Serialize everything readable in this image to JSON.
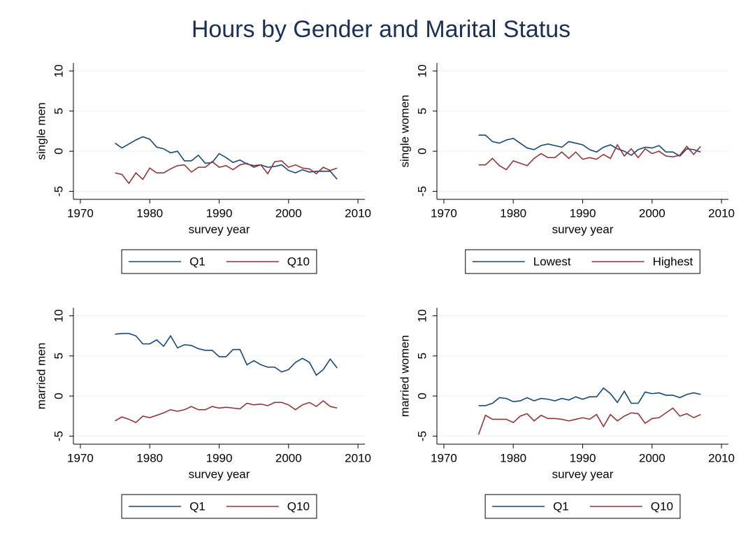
{
  "title": "Hours by Gender and Marital Status",
  "chart_data": [
    {
      "type": "line",
      "ylabel": "single men",
      "xlabel": "survey year",
      "x": [
        1975,
        1976,
        1977,
        1978,
        1979,
        1980,
        1981,
        1982,
        1983,
        1984,
        1985,
        1986,
        1987,
        1988,
        1989,
        1990,
        1991,
        1992,
        1993,
        1994,
        1995,
        1996,
        1997,
        1998,
        1999,
        2000,
        2001,
        2002,
        2003,
        2004,
        2005,
        2006,
        2007
      ],
      "xlim": [
        1969,
        2011
      ],
      "xticks": [
        1970,
        1980,
        1990,
        2000,
        2010
      ],
      "ylim": [
        -6,
        11
      ],
      "yticks": [
        -5,
        0,
        5,
        10
      ],
      "grid": true,
      "series": [
        {
          "name": "Q1",
          "color": "#1a476f",
          "values": [
            1.0,
            0.4,
            0.9,
            1.4,
            1.8,
            1.5,
            0.5,
            0.3,
            -0.2,
            0.0,
            -1.2,
            -1.2,
            -0.5,
            -1.5,
            -1.4,
            -0.3,
            -0.8,
            -1.4,
            -1.1,
            -1.6,
            -1.8,
            -1.7,
            -2.0,
            -1.9,
            -1.7,
            -2.4,
            -2.7,
            -2.3,
            -2.6,
            -2.5,
            -2.5,
            -2.5,
            -3.5
          ]
        },
        {
          "name": "Q10",
          "color": "#90353b",
          "values": [
            -2.7,
            -2.9,
            -4.0,
            -2.7,
            -3.5,
            -2.1,
            -2.7,
            -2.7,
            -2.2,
            -1.8,
            -1.7,
            -2.6,
            -2.0,
            -2.0,
            -1.3,
            -2.0,
            -1.8,
            -2.3,
            -1.7,
            -1.5,
            -2.0,
            -1.7,
            -2.8,
            -1.3,
            -1.2,
            -2.0,
            -1.7,
            -2.1,
            -2.2,
            -2.8,
            -2.0,
            -2.4,
            -2.1
          ]
        }
      ]
    },
    {
      "type": "line",
      "ylabel": "single women",
      "xlabel": "survey year",
      "x": [
        1975,
        1976,
        1977,
        1978,
        1979,
        1980,
        1981,
        1982,
        1983,
        1984,
        1985,
        1986,
        1987,
        1988,
        1989,
        1990,
        1991,
        1992,
        1993,
        1994,
        1995,
        1996,
        1997,
        1998,
        1999,
        2000,
        2001,
        2002,
        2003,
        2004,
        2005,
        2006,
        2007
      ],
      "xlim": [
        1969,
        2011
      ],
      "xticks": [
        1970,
        1980,
        1990,
        2000,
        2010
      ],
      "ylim": [
        -6,
        11
      ],
      "yticks": [
        -5,
        0,
        5,
        10
      ],
      "grid": true,
      "series": [
        {
          "name": "Lowest",
          "color": "#1a476f",
          "values": [
            2.0,
            2.0,
            1.2,
            1.0,
            1.4,
            1.6,
            1.0,
            0.4,
            0.2,
            0.7,
            0.9,
            0.7,
            0.5,
            1.2,
            1.0,
            0.8,
            0.2,
            -0.1,
            0.5,
            0.8,
            0.3,
            0.0,
            -0.5,
            0.2,
            0.5,
            0.4,
            0.7,
            -0.1,
            -0.1,
            -0.6,
            0.3,
            0.2,
            -0.1
          ]
        },
        {
          "name": "Highest",
          "color": "#90353b",
          "values": [
            -1.7,
            -1.7,
            -0.9,
            -1.8,
            -2.3,
            -1.2,
            -1.5,
            -1.8,
            -0.9,
            -0.3,
            -0.8,
            -0.8,
            -0.1,
            -0.9,
            -0.1,
            -1.0,
            -0.8,
            -1.0,
            -0.4,
            -0.9,
            0.8,
            -0.6,
            0.3,
            -0.8,
            0.3,
            -0.3,
            0.0,
            -0.6,
            -0.7,
            -0.5,
            0.6,
            -0.4,
            0.6
          ]
        }
      ]
    },
    {
      "type": "line",
      "ylabel": "married men",
      "xlabel": "survey year",
      "x": [
        1975,
        1976,
        1977,
        1978,
        1979,
        1980,
        1981,
        1982,
        1983,
        1984,
        1985,
        1986,
        1987,
        1988,
        1989,
        1990,
        1991,
        1992,
        1993,
        1994,
        1995,
        1996,
        1997,
        1998,
        1999,
        2000,
        2001,
        2002,
        2003,
        2004,
        2005,
        2006,
        2007
      ],
      "xlim": [
        1969,
        2011
      ],
      "xticks": [
        1970,
        1980,
        1990,
        2000,
        2010
      ],
      "ylim": [
        -6,
        11
      ],
      "yticks": [
        -5,
        0,
        5,
        10
      ],
      "grid": true,
      "series": [
        {
          "name": "Q1",
          "color": "#1a476f",
          "values": [
            7.7,
            7.8,
            7.8,
            7.5,
            6.5,
            6.5,
            7.0,
            6.2,
            7.5,
            6.0,
            6.4,
            6.3,
            5.9,
            5.7,
            5.7,
            4.9,
            4.9,
            5.8,
            5.8,
            3.9,
            4.4,
            3.9,
            3.6,
            3.6,
            3.0,
            3.3,
            4.2,
            4.7,
            4.2,
            2.6,
            3.3,
            4.6,
            3.5
          ]
        },
        {
          "name": "Q10",
          "color": "#90353b",
          "values": [
            -3.1,
            -2.6,
            -2.9,
            -3.3,
            -2.5,
            -2.7,
            -2.4,
            -2.1,
            -1.7,
            -1.9,
            -1.7,
            -1.3,
            -1.7,
            -1.7,
            -1.3,
            -1.5,
            -1.4,
            -1.5,
            -1.6,
            -0.9,
            -1.1,
            -1.0,
            -1.2,
            -0.8,
            -0.8,
            -1.1,
            -1.7,
            -1.1,
            -0.8,
            -1.3,
            -0.6,
            -1.3,
            -1.5
          ]
        }
      ]
    },
    {
      "type": "line",
      "ylabel": "married women",
      "xlabel": "survey year",
      "x": [
        1975,
        1976,
        1977,
        1978,
        1979,
        1980,
        1981,
        1982,
        1983,
        1984,
        1985,
        1986,
        1987,
        1988,
        1989,
        1990,
        1991,
        1992,
        1993,
        1994,
        1995,
        1996,
        1997,
        1998,
        1999,
        2000,
        2001,
        2002,
        2003,
        2004,
        2005,
        2006,
        2007
      ],
      "xlim": [
        1969,
        2011
      ],
      "xticks": [
        1970,
        1980,
        1990,
        2000,
        2010
      ],
      "ylim": [
        -6,
        11
      ],
      "yticks": [
        -5,
        0,
        5,
        10
      ],
      "grid": true,
      "series": [
        {
          "name": "Q1",
          "color": "#1a476f",
          "values": [
            -1.2,
            -1.2,
            -0.9,
            -0.2,
            -0.3,
            -0.7,
            -0.6,
            -0.2,
            -0.6,
            -0.3,
            -0.4,
            -0.6,
            -0.3,
            -0.5,
            -0.1,
            -0.4,
            -0.1,
            -0.1,
            1.0,
            0.3,
            -0.8,
            0.6,
            -0.9,
            -0.9,
            0.5,
            0.3,
            0.4,
            0.1,
            0.1,
            -0.2,
            0.2,
            0.4,
            0.2
          ]
        },
        {
          "name": "Q10",
          "color": "#90353b",
          "values": [
            -4.8,
            -2.4,
            -2.9,
            -2.9,
            -2.9,
            -3.3,
            -2.5,
            -2.2,
            -3.1,
            -2.4,
            -2.8,
            -2.8,
            -2.9,
            -3.1,
            -2.9,
            -2.7,
            -2.9,
            -2.3,
            -3.8,
            -2.3,
            -3.1,
            -2.5,
            -2.1,
            -2.2,
            -3.4,
            -2.8,
            -2.7,
            -2.1,
            -1.5,
            -2.5,
            -2.2,
            -2.7,
            -2.3
          ]
        }
      ]
    }
  ]
}
